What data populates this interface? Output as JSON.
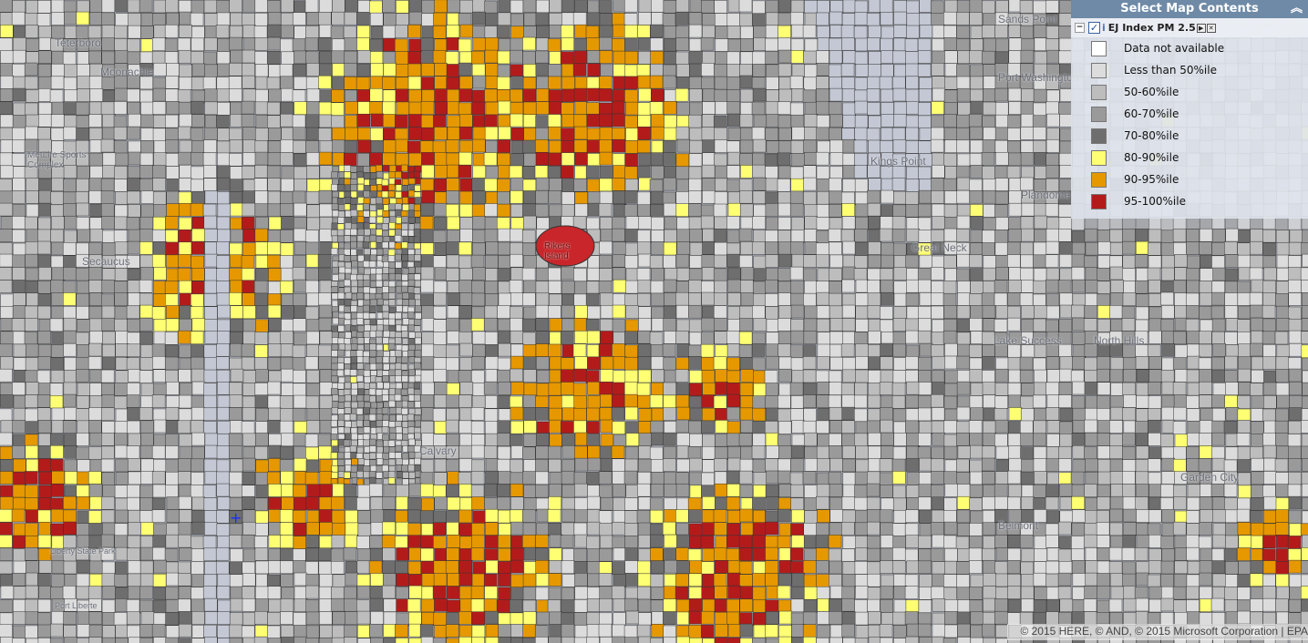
{
  "legend": {
    "title": "Select Map Contents",
    "collapse_icon": "double-chevron-up-icon",
    "layer_name": "EJ Index  PM 2.5",
    "layer_checked": true,
    "items": [
      {
        "label": "Data not available",
        "color": "#ffffff"
      },
      {
        "label": "Less than 50%ile",
        "color": "#dcdcdc"
      },
      {
        "label": "50-60%ile",
        "color": "#bdbdbd"
      },
      {
        "label": "60-70%ile",
        "color": "#9a9a9a"
      },
      {
        "label": "70-80%ile",
        "color": "#6e6e6e"
      },
      {
        "label": "80-90%ile",
        "color": "#ffff73"
      },
      {
        "label": "90-95%ile",
        "color": "#e69800"
      },
      {
        "label": "95-100%ile",
        "color": "#b31b1b"
      }
    ]
  },
  "places": [
    "Teterboro",
    "Moonachie",
    "MetLife Sports Complex",
    "Secaucus",
    "Rikers Island",
    "Sands Point",
    "Port Washington",
    "Kings Point",
    "Plandome",
    "Great Neck",
    "Lake Success",
    "North Hills",
    "Belmont",
    "Garden City",
    "Liberty State Park",
    "Port Liberte",
    "Calvary"
  ],
  "attribution": "© 2015 HERE, © AND, © 2015 Microsoft Corporation | EPA"
}
